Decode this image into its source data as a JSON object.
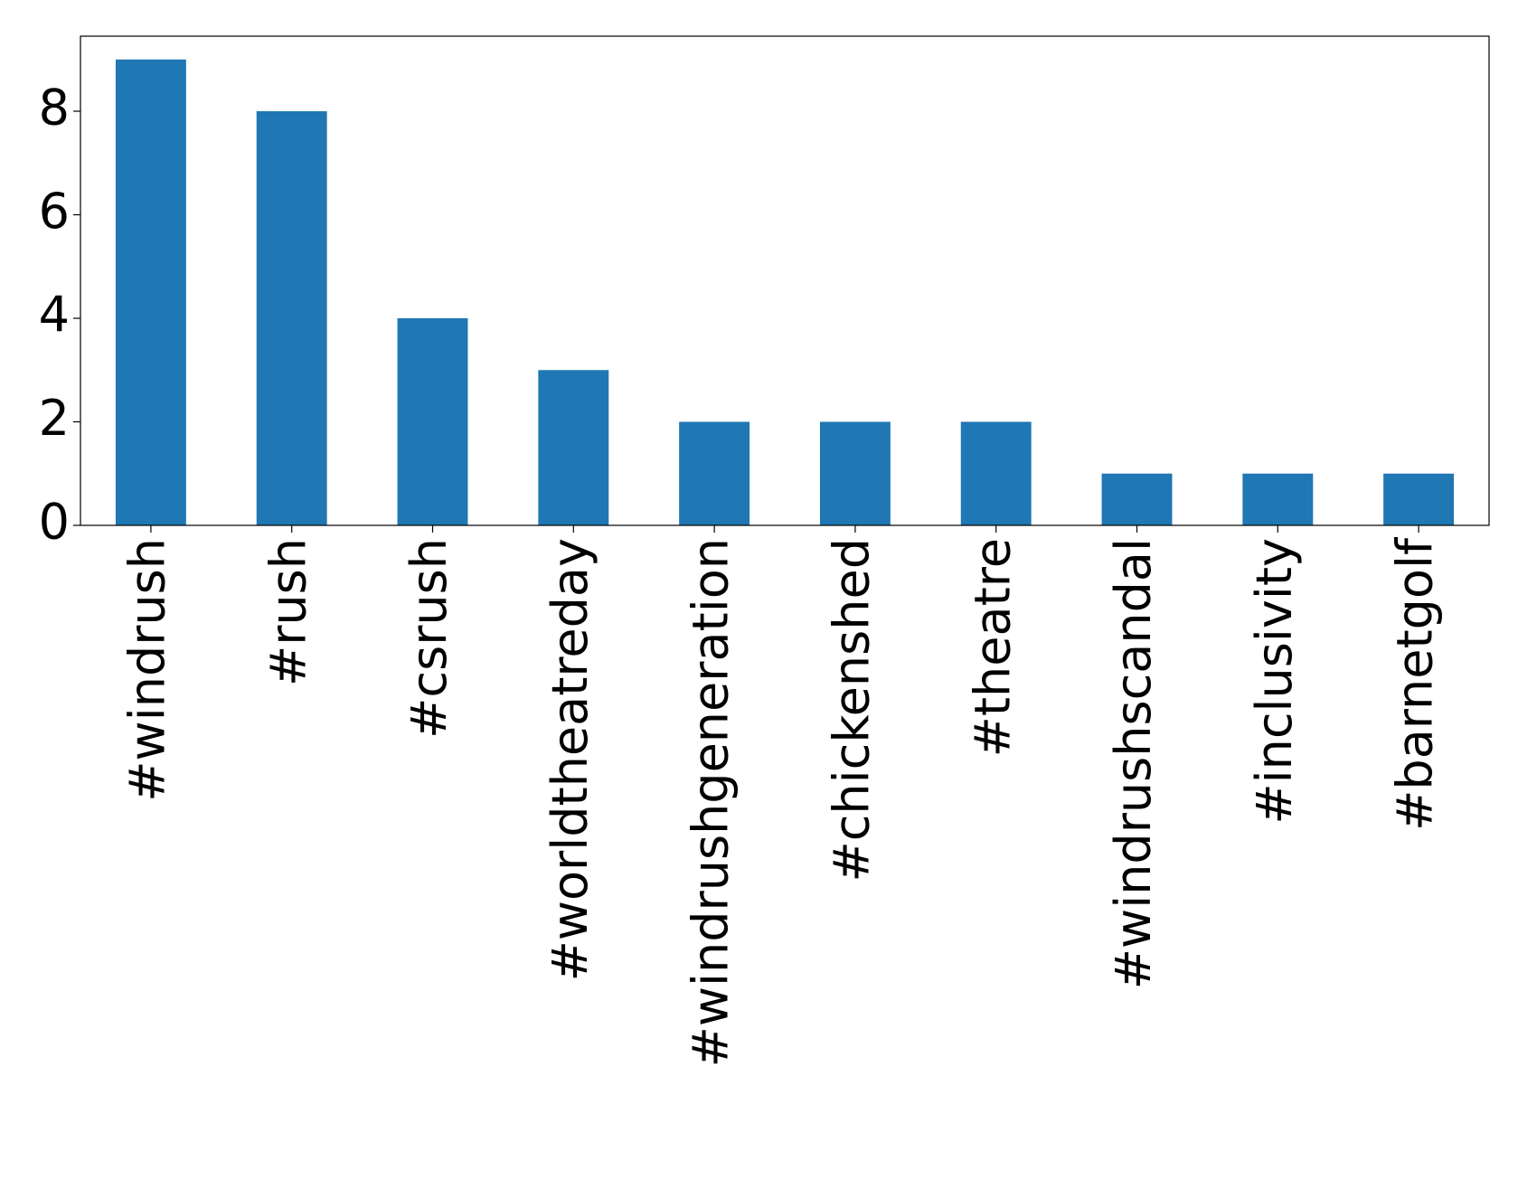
{
  "chart_data": {
    "type": "bar",
    "categories": [
      "#windrush",
      "#rush",
      "#csrush",
      "#worldtheatreday",
      "#windrushgeneration",
      "#chickenshed",
      "#theatre",
      "#windrushscandal",
      "#inclusivity",
      "#barnetgolf"
    ],
    "values": [
      9,
      8,
      4,
      3,
      2,
      2,
      2,
      1,
      1,
      1
    ],
    "color": "#1f77b4",
    "ylim": [
      0,
      9.45
    ],
    "yticks": [
      0,
      2,
      4,
      6,
      8
    ],
    "grid": false
  }
}
